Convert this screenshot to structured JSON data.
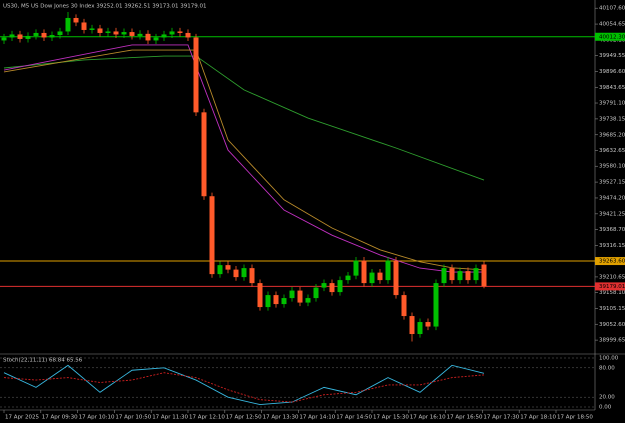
{
  "chart_data": {
    "type": "candlestick",
    "title": "US30, M5  US Dow Jones 30 Index  39252.01 39262.51 39173.01 39179.01",
    "open": [
      40000,
      40010,
      40020,
      40005,
      40015,
      40025,
      40010,
      40018,
      40030,
      40075,
      40060,
      40035,
      40040,
      40025,
      40030,
      40020,
      40028,
      40015,
      40022,
      40000,
      40010,
      40020,
      40030,
      40025,
      40010,
      39760,
      39480,
      39220,
      39250,
      39235,
      39210,
      39240,
      39190,
      39110,
      39150,
      39120,
      39140,
      39165,
      39125,
      39140,
      39175,
      39190,
      39160,
      39200,
      39215,
      39265,
      39190,
      39225,
      39200,
      39265,
      39150,
      39080,
      39020,
      39060,
      39045,
      39190,
      39240,
      39200,
      39230,
      39200,
      39252.01
    ],
    "high": [
      40022,
      40032,
      40032,
      40027,
      40037,
      40037,
      40030,
      40042,
      40095,
      40087,
      40072,
      40052,
      40052,
      40042,
      40042,
      40040,
      40040,
      40034,
      40034,
      40022,
      40032,
      40042,
      40042,
      40037,
      40022,
      39772,
      39492,
      39262,
      39262,
      39247,
      39252,
      39252,
      39202,
      39162,
      39162,
      39152,
      39177,
      39177,
      39152,
      39187,
      39202,
      39202,
      39212,
      39227,
      39277,
      39277,
      39237,
      39237,
      39277,
      39277,
      39162,
      39092,
      39072,
      39072,
      39202,
      39252,
      39252,
      39242,
      39242,
      39252,
      39262.51
    ],
    "low": [
      39988,
      39998,
      39993,
      39993,
      40003,
      39998,
      39998,
      40006,
      40018,
      40048,
      40023,
      40023,
      40013,
      40013,
      40008,
      40008,
      40003,
      40003,
      39988,
      39988,
      39998,
      40008,
      40013,
      39998,
      39748,
      39468,
      39208,
      39208,
      39223,
      39198,
      39198,
      39178,
      39098,
      39098,
      39108,
      39108,
      39128,
      39113,
      39113,
      39128,
      39163,
      39148,
      39148,
      39188,
      39203,
      39178,
      39178,
      39188,
      39188,
      39138,
      39068,
      38995,
      39008,
      39033,
      39033,
      39178,
      39188,
      39188,
      39188,
      39188,
      39173.01
    ],
    "close": [
      40010,
      40020,
      40005,
      40015,
      40025,
      40010,
      40018,
      40030,
      40075,
      40060,
      40035,
      40040,
      40025,
      40030,
      40020,
      40028,
      40015,
      40022,
      40000,
      40010,
      40020,
      40030,
      40025,
      40010,
      39760,
      39480,
      39220,
      39250,
      39235,
      39210,
      39240,
      39190,
      39110,
      39150,
      39120,
      39140,
      39165,
      39125,
      39140,
      39175,
      39190,
      39160,
      39200,
      39215,
      39265,
      39190,
      39225,
      39200,
      39265,
      39150,
      39080,
      39020,
      39060,
      39045,
      39190,
      39240,
      39200,
      39230,
      39200,
      39240,
      39179.01
    ],
    "up_color": "#00c000",
    "down_color": "#ff5a2a",
    "lines": [
      {
        "color": "#2e9e2e",
        "x": [
          0,
          10,
          20,
          24,
          30,
          38,
          49,
          60
        ],
        "values": [
          39908,
          39935,
          39948,
          39948,
          39835,
          39741,
          39641,
          39534
        ]
      },
      {
        "color": "#c030c0",
        "x": [
          0,
          16,
          23,
          28,
          35,
          41,
          47,
          52,
          56,
          60
        ],
        "values": [
          39901,
          39985,
          39985,
          39634,
          39434,
          39350,
          39284,
          39240,
          39227,
          39227
        ]
      },
      {
        "color": "#b88a2a",
        "x": [
          0,
          16,
          24,
          28,
          35,
          41,
          47,
          52,
          56,
          60
        ],
        "values": [
          39895,
          39968,
          39968,
          39668,
          39468,
          39374,
          39301,
          39261,
          39241,
          39234
        ]
      }
    ],
    "levels": [
      {
        "value": 40012.3,
        "label": "40012.30",
        "color": "#00c000"
      },
      {
        "value": 39263.6,
        "label": "39263.60",
        "color": "#e0a000"
      },
      {
        "value": 39179.01,
        "label": "39179.01",
        "color": "#e03030"
      }
    ],
    "ylim": [
      38960,
      40125
    ],
    "yticks": [
      {
        "value": 40107.6,
        "label": "40107.60"
      },
      40054.65,
      {
        "value": 40002.1,
        "label": "40002.10"
      },
      39949.55,
      {
        "value": 39896.6,
        "label": "39896.60"
      },
      39843.65,
      {
        "value": 39791.1,
        "label": "39791.10"
      },
      39738.15,
      {
        "value": 39685.2,
        "label": "39685.20"
      },
      39632.65,
      {
        "value": 39580.1,
        "label": "39580.10"
      },
      39527.15,
      {
        "value": 39474.2,
        "label": "39474.20"
      },
      39421.25,
      {
        "value": 39368.7,
        "label": "39368.70"
      },
      39316.15,
      {
        "value": 39263.6,
        "label": "39263.60"
      },
      39210.65,
      {
        "value": 39158.1,
        "label": "39158.10"
      },
      39105.15,
      {
        "value": 39052.6,
        "label": "39052.60"
      },
      38999.65
    ],
    "xlim": [
      -0.5,
      73.875
    ],
    "xticks": [
      {
        "value": 0,
        "label": "17 Apr 2025"
      },
      {
        "value": 4.6,
        "label": "17 Apr 09:30"
      },
      {
        "value": 9.2,
        "label": "17 Apr 10:10"
      },
      {
        "value": 13.8,
        "label": "17 Apr 10:50"
      },
      {
        "value": 18.4,
        "label": "17 Apr 11:30"
      },
      {
        "value": 23,
        "label": "17 Apr 12:10"
      },
      {
        "value": 27.6,
        "label": "17 Apr 12:50"
      },
      {
        "value": 32.2,
        "label": "17 Apr 13:30"
      },
      {
        "value": 36.8,
        "label": "17 Apr 14:10"
      },
      {
        "value": 41.4,
        "label": "17 Apr 14:50"
      },
      {
        "value": 46,
        "label": "17 Apr 15:30"
      },
      {
        "value": 50.6,
        "label": "17 Apr 16:10"
      },
      {
        "value": 55.2,
        "label": "17 Apr 16:50"
      },
      {
        "value": 59.8,
        "label": "17 Apr 17:30"
      },
      {
        "value": 64.4,
        "label": "17 Apr 18:10"
      },
      {
        "value": 69,
        "label": "17 Apr 18:50"
      }
    ],
    "indicator": {
      "title": "Stoch(22,11,11) 68.84 65.56",
      "ylim": [
        0,
        100
      ],
      "yticks": [
        {
          "value": 100,
          "label": "100.00"
        },
        {
          "value": 80,
          "label": "80.00"
        },
        {
          "value": 20,
          "label": "20.00"
        },
        {
          "value": 0,
          "label": "0.00"
        }
      ],
      "x": [
        0,
        4,
        8,
        12,
        16,
        20,
        24,
        28,
        32,
        36,
        40,
        44,
        48,
        52,
        56,
        60
      ],
      "series": [
        {
          "color": "#38b8e0",
          "values": [
            70,
            40,
            85,
            30,
            75,
            80,
            55,
            20,
            5,
            10,
            40,
            25,
            60,
            30,
            85,
            68.84
          ]
        },
        {
          "color": "#d02020",
          "values": [
            60,
            55,
            60,
            50,
            55,
            70,
            60,
            35,
            15,
            10,
            25,
            30,
            45,
            45,
            60,
            65.56
          ]
        }
      ]
    }
  }
}
